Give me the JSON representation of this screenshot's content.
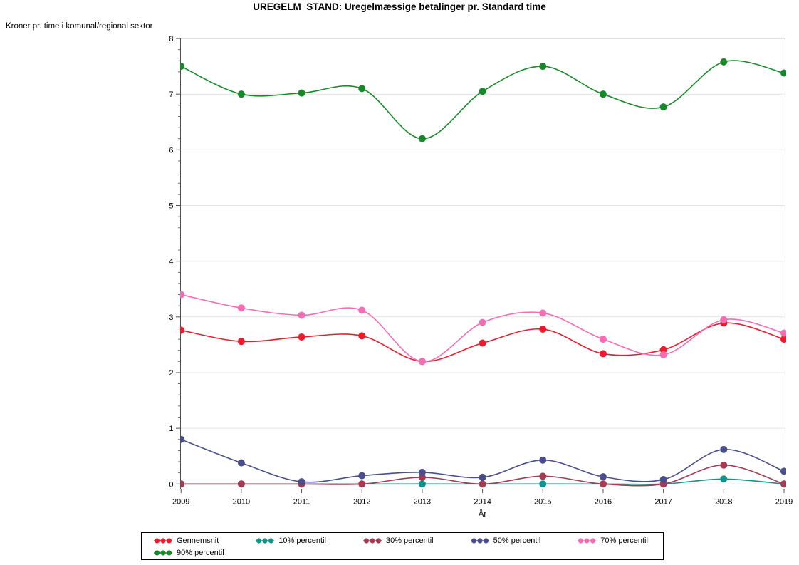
{
  "chart_data": {
    "type": "line",
    "title": "UREGELM_STAND: Uregelmæssige betalinger pr. Standard time",
    "xlabel": "År",
    "ylabel": "Kroner pr. time i komunal/regional sektor",
    "x": [
      2009,
      2010,
      2011,
      2012,
      2013,
      2014,
      2015,
      2016,
      2017,
      2018,
      2019
    ],
    "ylim": [
      0,
      8
    ],
    "yticks": [
      0,
      1,
      2,
      3,
      4,
      5,
      6,
      7,
      8
    ],
    "y_minor_tick_step": 0.2,
    "grid": "horizontal-major-gridlines",
    "smooth_lines": true,
    "legend_position": "bottom",
    "frame_color": "#c9c9c9",
    "axis_color": "#4d4d4d",
    "gridline_color": "#e4e4e4",
    "series": [
      {
        "name": "Gennemsnit",
        "color": "#ED1B2D",
        "values": [
          2.76,
          2.56,
          2.64,
          2.66,
          2.2,
          2.53,
          2.78,
          2.34,
          2.41,
          2.89,
          2.6
        ]
      },
      {
        "name": "10% percentil",
        "color": "#0F948B",
        "values": [
          0.0,
          0.0,
          0.0,
          0.0,
          0.0,
          0.0,
          0.0,
          0.0,
          0.0,
          0.09,
          0.0
        ]
      },
      {
        "name": "30% percentil",
        "color": "#A53B52",
        "values": [
          0.0,
          0.0,
          0.0,
          0.0,
          0.12,
          0.0,
          0.14,
          0.0,
          0.0,
          0.34,
          0.0
        ]
      },
      {
        "name": "50% percentil",
        "color": "#4A4E8C",
        "values": [
          0.8,
          0.38,
          0.04,
          0.15,
          0.21,
          0.12,
          0.43,
          0.13,
          0.08,
          0.62,
          0.23
        ]
      },
      {
        "name": "70% percentil",
        "color": "#F56EB5",
        "values": [
          3.4,
          3.16,
          3.03,
          3.12,
          2.2,
          2.9,
          3.07,
          2.6,
          2.32,
          2.95,
          2.71
        ]
      },
      {
        "name": "90% percentil",
        "color": "#168A28",
        "values": [
          7.5,
          7.0,
          7.02,
          7.1,
          6.2,
          7.05,
          7.5,
          7.0,
          6.77,
          7.58,
          7.38
        ]
      }
    ]
  }
}
